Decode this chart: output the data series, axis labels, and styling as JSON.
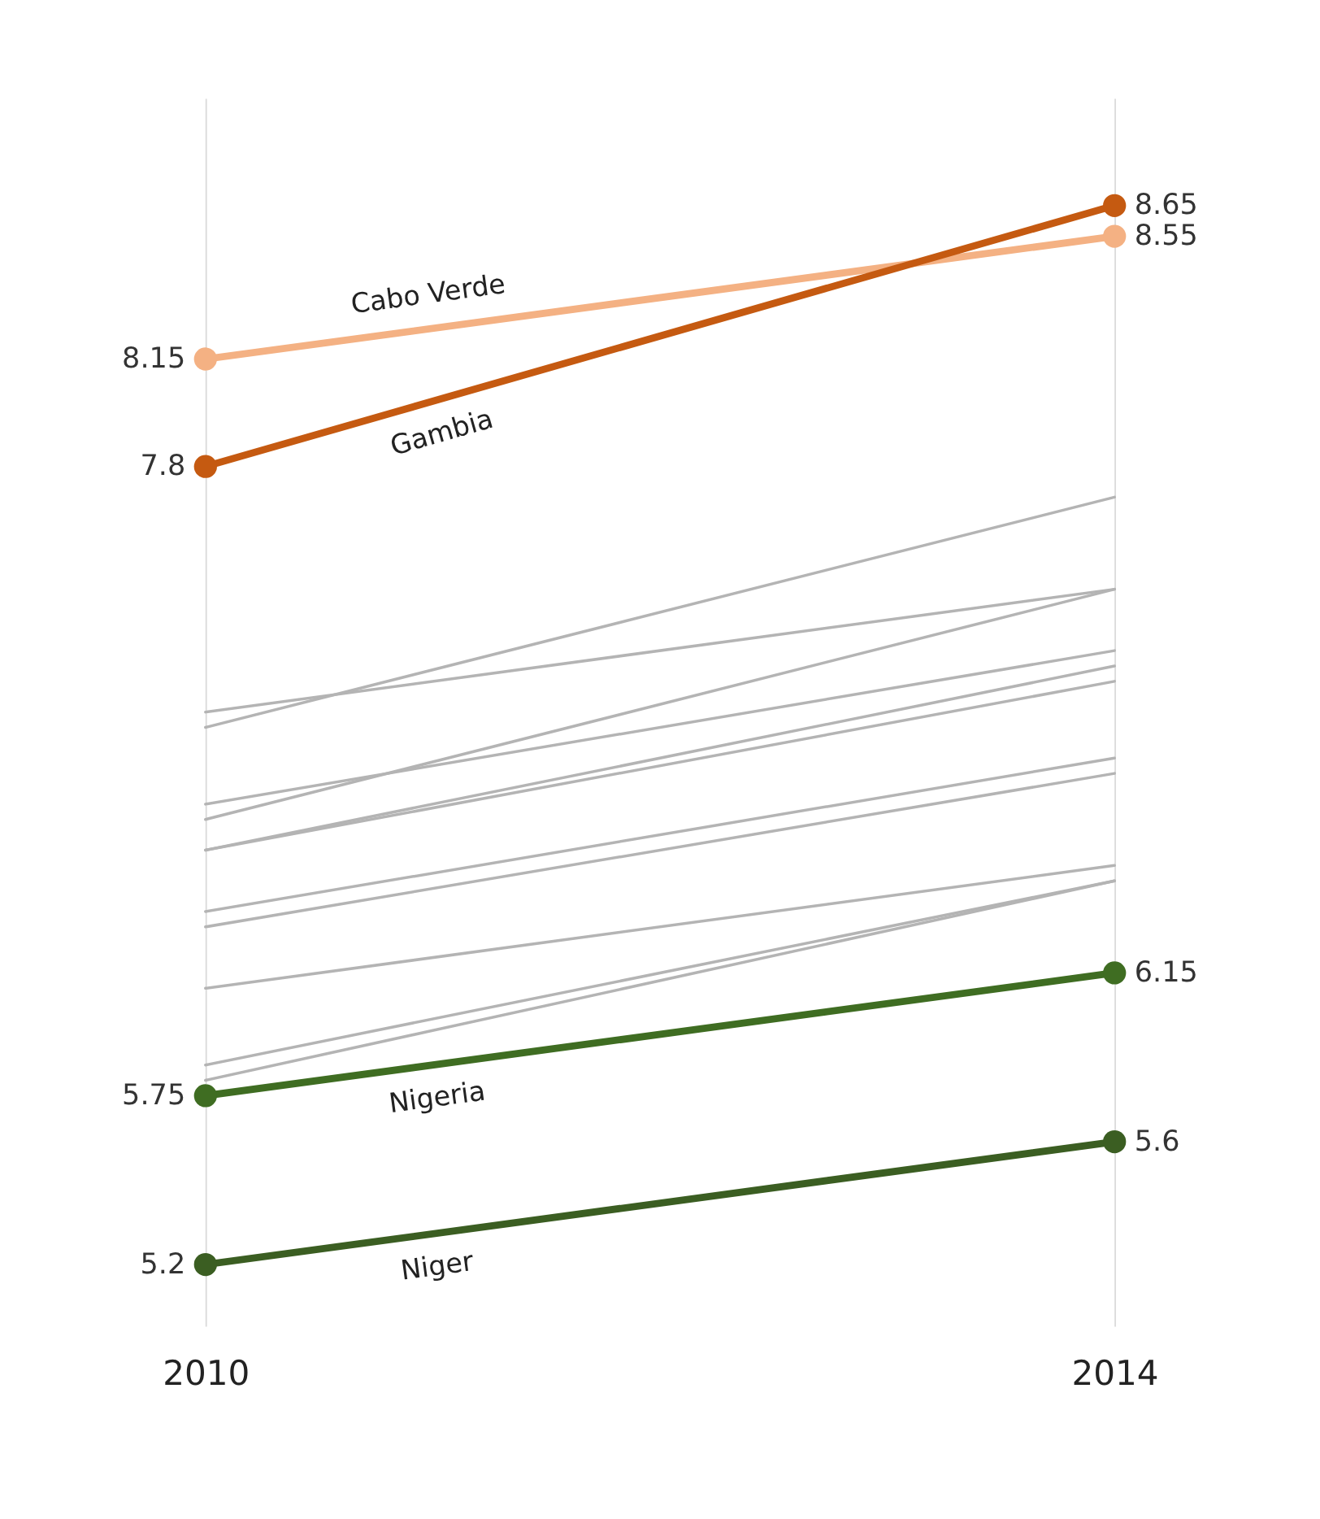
{
  "chart_data": {
    "type": "line",
    "x": [
      2010,
      2014
    ],
    "xlim": [
      2010,
      2014
    ],
    "xticks": [
      2010,
      2014
    ],
    "ylim": [
      5.0,
      9.0
    ],
    "tick_labels": "x",
    "grid": "x",
    "series": [
      {
        "color": "#b4b4b4",
        "marker": "none",
        "values": [
          6.95,
          7.7
        ]
      },
      {
        "color": "#b4b4b4",
        "marker": "none",
        "values": [
          7.0,
          7.4
        ]
      },
      {
        "color": "#b4b4b4",
        "marker": "none",
        "values": [
          6.65,
          7.4
        ]
      },
      {
        "color": "#b4b4b4",
        "marker": "none",
        "values": [
          6.7,
          7.2
        ]
      },
      {
        "color": "#b4b4b4",
        "marker": "none",
        "values": [
          6.55,
          7.15
        ]
      },
      {
        "color": "#b4b4b4",
        "marker": "none",
        "values": [
          6.55,
          7.1
        ]
      },
      {
        "color": "#b4b4b4",
        "marker": "none",
        "values": [
          6.35,
          6.85
        ]
      },
      {
        "color": "#b4b4b4",
        "marker": "none",
        "values": [
          6.3,
          6.8
        ]
      },
      {
        "color": "#b4b4b4",
        "marker": "none",
        "values": [
          6.1,
          6.5
        ]
      },
      {
        "color": "#b4b4b4",
        "marker": "none",
        "values": [
          5.85,
          6.45
        ]
      },
      {
        "color": "#b4b4b4",
        "marker": "none",
        "values": [
          5.8,
          6.45
        ]
      },
      {
        "name": "Cabo Verde",
        "color": "#f4b183",
        "marker": "circle",
        "values": [
          8.15,
          8.55
        ],
        "value_labels": [
          "8.15",
          "8.55"
        ]
      },
      {
        "name": "Gambia",
        "color": "#c55a11",
        "marker": "circle",
        "values": [
          7.8,
          8.65
        ],
        "value_labels": [
          "7.8",
          "8.65"
        ]
      },
      {
        "name": "Nigeria",
        "color": "#3f6d22",
        "marker": "circle",
        "values": [
          5.75,
          6.15
        ],
        "value_labels": [
          "5.75",
          "6.15"
        ]
      },
      {
        "name": "Niger",
        "color": "#3b5e22",
        "marker": "circle",
        "values": [
          5.2,
          5.6
        ],
        "value_labels": [
          "5.2",
          "5.6"
        ]
      }
    ]
  }
}
